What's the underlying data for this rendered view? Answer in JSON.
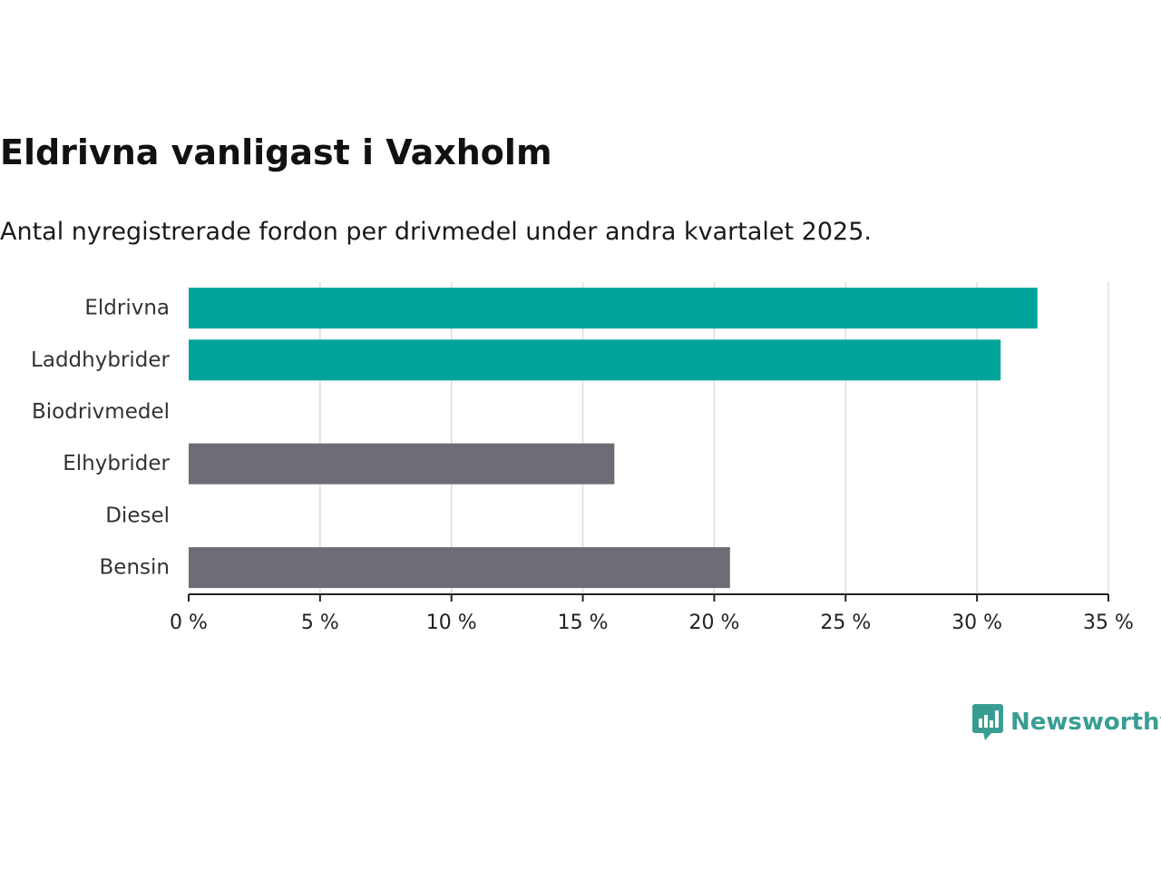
{
  "title": "Eldrivna vanligast i Vaxholm",
  "subtitle": "Antal nyregistrerade fordon per drivmedel under andra kvartalet 2025.",
  "brand": {
    "name": "Newsworthy",
    "color": "#3a9d93",
    "icon": "bar-chart-speech-icon"
  },
  "colors": {
    "highlight": "#00a39a",
    "default": "#6e6d75",
    "grid": "#dddddd",
    "axis": "#222222"
  },
  "chart_data": {
    "type": "bar",
    "orientation": "horizontal",
    "categories": [
      "Eldrivna",
      "Laddhybrider",
      "Biodrivmedel",
      "Elhybrider",
      "Diesel",
      "Bensin"
    ],
    "values": [
      32.3,
      30.9,
      0,
      16.2,
      0,
      20.6
    ],
    "highlighted": [
      true,
      true,
      false,
      false,
      false,
      false
    ],
    "xlim": [
      0,
      35
    ],
    "ticks": [
      0,
      5,
      10,
      15,
      20,
      25,
      30,
      35
    ],
    "tick_labels": [
      "0 %",
      "5 %",
      "10 %",
      "15 %",
      "20 %",
      "25 %",
      "30 %",
      "35 %"
    ],
    "grid": true
  }
}
